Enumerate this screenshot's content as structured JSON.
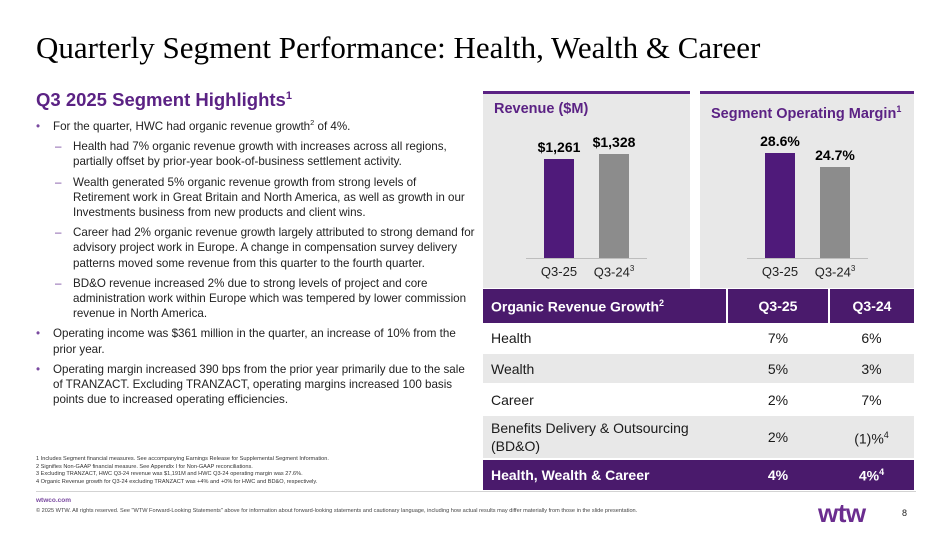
{
  "title": "Quarterly Segment Performance: Health, Wealth & Career",
  "highlights": {
    "heading": "Q3 2025 Segment Highlights",
    "heading_sup": "1",
    "b1": {
      "pre": "For the quarter, HWC had organic revenue growth",
      "sup": "2",
      "post": " of 4%."
    },
    "s1": "Health had 7% organic revenue growth with increases across all regions, partially offset by prior-year book-of-business settlement activity.",
    "s2": "Wealth generated 5% organic revenue growth from strong levels of Retirement work in Great Britain and North America, as well as growth in our Investments business from new products and client wins.",
    "s3": "Career had 2% organic revenue growth largely attributed to strong demand for advisory project work in Europe. A change in compensation survey delivery patterns moved some revenue from this quarter to the fourth quarter.",
    "s4": "BD&O revenue increased 2% due to strong levels of project and core administration work within Europe which was tempered by lower commission revenue in North America.",
    "b2": "Operating income was $361 million in the quarter, an increase of 10% from the prior year.",
    "b3": "Operating margin increased 390 bps from the prior year primarily due to the sale of TRANZACT. Excluding TRANZACT, operating margins increased 100 basis points due to increased operating efficiencies.",
    "bullet_mark": "•",
    "dash_mark": "–"
  },
  "revenue_chart": {
    "title": "Revenue ($M)",
    "colors": [
      "#4f1a7a",
      "#8c8c8c"
    ],
    "chart_data": {
      "type": "bar",
      "title": "Revenue ($M)",
      "categories": [
        "Q3-25",
        "Q3-24"
      ],
      "category_sups": [
        "",
        "3"
      ],
      "values": [
        1261,
        1328
      ],
      "labels": [
        "$1,261",
        "$1,328"
      ],
      "ylim": [
        0,
        1400
      ]
    }
  },
  "margin_chart": {
    "title": "Segment Operating Margin",
    "title_sup": "1",
    "colors": [
      "#4f1a7a",
      "#8c8c8c"
    ],
    "chart_data": {
      "type": "bar",
      "title": "Segment Operating Margin",
      "categories": [
        "Q3-25",
        "Q3-24"
      ],
      "category_sups": [
        "",
        "3"
      ],
      "values": [
        28.6,
        24.7
      ],
      "labels": [
        "28.6%",
        "24.7%"
      ],
      "ylim": [
        0,
        30
      ]
    }
  },
  "table": {
    "header": {
      "c1": "Organic Revenue Growth",
      "c1_sup": "2",
      "c2": "Q3-25",
      "c3": "Q3-24"
    },
    "rows": [
      {
        "c1": "Health",
        "c2": "7%",
        "c3": "6%"
      },
      {
        "c1": "Wealth",
        "c2": "5%",
        "c3": "3%"
      },
      {
        "c1": "Career",
        "c2": "2%",
        "c3": "7%"
      },
      {
        "c1": "Benefits Delivery & Outsourcing (BD&O)",
        "c2": "2%",
        "c3": "(1)%",
        "c3_sup": "4"
      }
    ],
    "total": {
      "c1": "Health, Wealth & Career",
      "c2": "4%",
      "c3": "4%",
      "c3_sup": "4"
    }
  },
  "footnotes": [
    "1 Includes Segment financial measures. See accompanying Earnings Release for Supplemental Segment Information.",
    "2 Signifies Non-GAAP financial measure. See Appendix I for Non-GAAP reconciliations.",
    "3 Excluding TRANZACT, HWC Q3-24 revenue was $1,191M and HWC Q3-24 operating margin was 27.6%.",
    "4 Organic Revenue growth for Q3-24 excluding TRANZACT was +4% and +0% for HWC and BD&O, respectively."
  ],
  "footer": {
    "site": "wtwco.com",
    "legal": "© 2025 WTW. All rights reserved. See \"WTW Forward-Looking Statements\" above for information about forward-looking statements and cautionary language, including how actual results may differ materially from those in the slide presentation.",
    "logo": "wtw",
    "page": "8"
  }
}
